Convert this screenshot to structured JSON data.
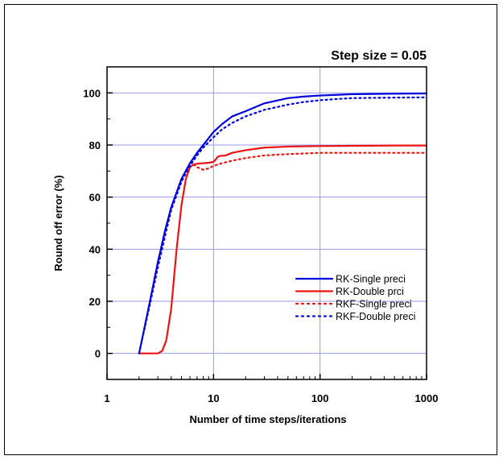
{
  "chart_data": {
    "type": "line",
    "title": "Step size = 0.05",
    "xlabel": "Number of time steps/iterations",
    "ylabel": "Round off error (%)",
    "x_scale": "log",
    "xlim": [
      1,
      1000
    ],
    "ylim": [
      -10,
      110
    ],
    "x_ticks": [
      1,
      10,
      100,
      1000
    ],
    "x_tick_labels": [
      "1",
      "10",
      "100",
      "1000"
    ],
    "y_ticks": [
      0,
      20,
      40,
      60,
      80,
      100
    ],
    "y_tick_labels": [
      "0",
      "20",
      "40",
      "60",
      "80",
      "100"
    ],
    "grid": true,
    "legend_position": "bottom-right",
    "series": [
      {
        "name": "RK-Single preci",
        "color": "#0000dd",
        "style": "solid",
        "x": [
          2,
          2.5,
          3,
          3.5,
          4,
          5,
          6,
          7,
          8,
          10,
          12,
          15,
          20,
          30,
          50,
          70,
          100,
          150,
          200,
          300,
          500,
          1000
        ],
        "y": [
          0,
          19,
          35,
          47,
          56,
          67,
          73,
          77,
          80,
          85,
          88,
          91,
          93,
          96,
          98,
          98.6,
          99,
          99.3,
          99.5,
          99.6,
          99.7,
          99.8
        ]
      },
      {
        "name": "RK-Double prci",
        "color": "#ee1111",
        "style": "solid",
        "x": [
          2,
          3,
          3.3,
          3.6,
          4,
          4.5,
          5,
          5.5,
          6,
          6.5,
          7,
          8,
          9,
          10,
          11,
          11.5,
          13,
          15,
          20,
          30,
          50,
          100,
          200,
          500,
          1000
        ],
        "y": [
          0,
          0,
          1,
          5,
          17,
          40,
          57,
          67,
          71.5,
          72.5,
          72.8,
          73,
          73.2,
          73.5,
          75.5,
          75.8,
          76,
          77,
          78,
          79,
          79.4,
          79.6,
          79.7,
          79.8,
          79.8
        ]
      },
      {
        "name": "RKF-Single preci",
        "color": "#ee1111",
        "style": "dotted",
        "x": [
          6.5,
          7,
          8,
          9,
          10,
          12,
          15,
          20,
          30,
          50,
          100,
          200,
          500,
          1000
        ],
        "y": [
          72.5,
          71.5,
          70.5,
          71,
          72,
          73,
          74,
          75,
          76,
          76.5,
          77,
          77,
          77,
          77
        ]
      },
      {
        "name": "RKF-Double preci",
        "color": "#0000dd",
        "style": "dotted",
        "x": [
          2,
          2.5,
          3,
          3.5,
          4,
          5,
          6,
          7,
          8,
          10,
          12,
          15,
          20,
          30,
          50,
          70,
          100,
          150,
          200,
          300,
          500,
          1000
        ],
        "y": [
          0,
          18,
          33,
          45,
          55,
          66,
          72,
          76,
          79,
          83,
          86,
          88.5,
          91,
          93.5,
          95.5,
          96.5,
          97.2,
          97.7,
          98,
          98.1,
          98.2,
          98.3
        ]
      }
    ]
  }
}
